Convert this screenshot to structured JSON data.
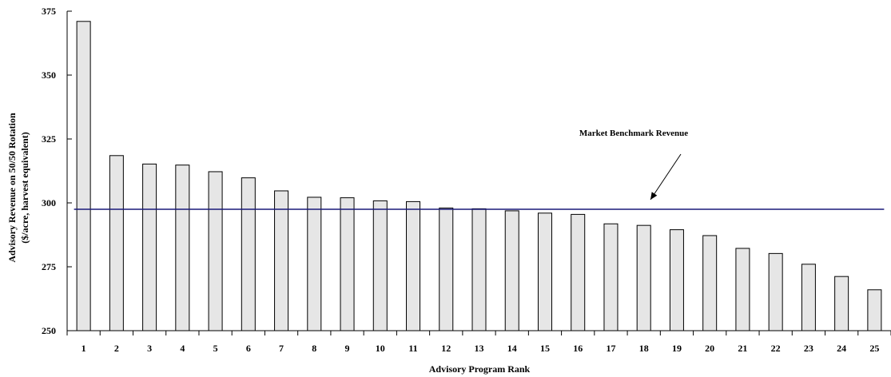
{
  "chart_data": {
    "type": "bar",
    "title": "",
    "xlabel": "Advisory Program Rank",
    "ylabel_line1": "Advisory Revenue on 50/50 Rotation",
    "ylabel_line2": "($/acre, harvest equivalent)",
    "ylim": [
      250,
      375
    ],
    "yticks": [
      "250",
      "275",
      "300",
      "325",
      "350",
      "375"
    ],
    "categories": [
      "1",
      "2",
      "3",
      "4",
      "5",
      "6",
      "7",
      "8",
      "9",
      "10",
      "11",
      "12",
      "13",
      "14",
      "15",
      "16",
      "17",
      "18",
      "19",
      "20",
      "21",
      "22",
      "23",
      "24",
      "25"
    ],
    "values": [
      371,
      318.5,
      315.2,
      314.8,
      312.2,
      309.8,
      304.7,
      302.2,
      302,
      300.8,
      300.5,
      298,
      297.7,
      296.9,
      296,
      295.5,
      291.8,
      291.2,
      289.5,
      287.2,
      282.2,
      280.2,
      276,
      271.2,
      266
    ],
    "benchmark": {
      "label": "Market Benchmark Revenue",
      "value": 297.5,
      "color": "#1a1a7a"
    },
    "bar_fill": "#e6e6e6",
    "bar_stroke": "#000000",
    "grid": false,
    "legend": "none"
  }
}
